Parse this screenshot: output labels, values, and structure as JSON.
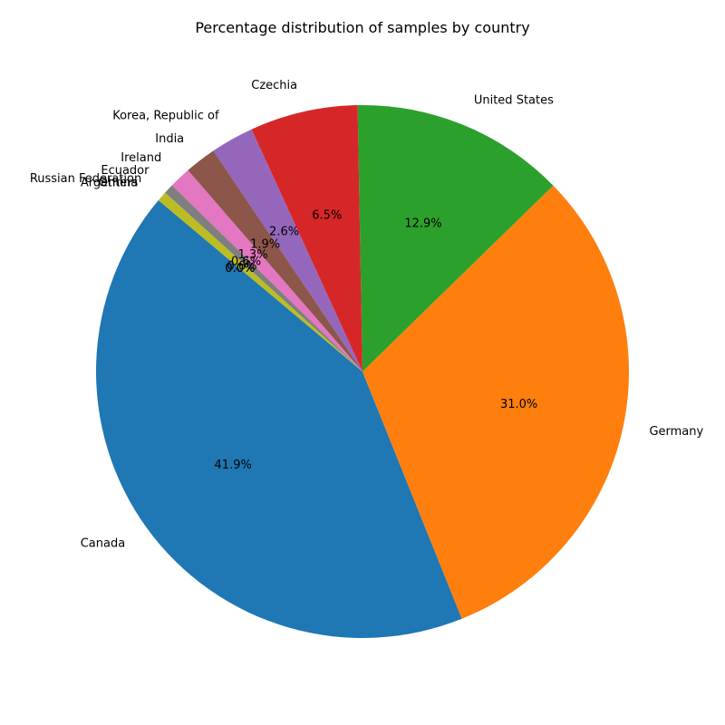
{
  "chart_data": {
    "type": "pie",
    "title": "Percentage distribution of samples by country",
    "categories": [
      "Canada",
      "Germany",
      "United States",
      "Czechia",
      "Korea, Republic of",
      "India",
      "Ireland",
      "Ecuador",
      "Russian Federation",
      "Argentina",
      "Others"
    ],
    "values": [
      41.9,
      31.0,
      12.9,
      6.5,
      2.6,
      1.9,
      1.3,
      0.6,
      0.6,
      0.0,
      0.0
    ],
    "value_labels": [
      "41.9%",
      "31.0%",
      "12.9%",
      "6.5%",
      "2.6%",
      "1.9%",
      "1.3%",
      "0.6%",
      "0.6%",
      "0.0%",
      "0.0%"
    ],
    "colors": [
      "#1f77b4",
      "#ff7f0e",
      "#2ca02c",
      "#d62728",
      "#9467bd",
      "#8c564b",
      "#e377c2",
      "#7f7f7f",
      "#bcbd22",
      "#17becf",
      "#1f77b4"
    ],
    "start_angle_deg": 140,
    "direction": "counterclockwise",
    "legend": "none"
  }
}
